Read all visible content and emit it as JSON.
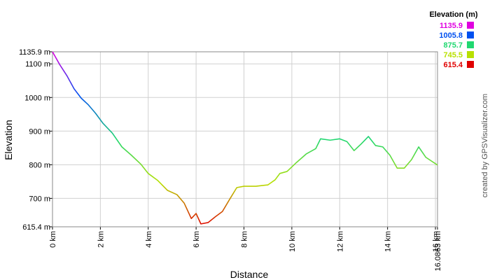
{
  "chart_data": {
    "type": "line",
    "x_label": "Distance",
    "y_label": "Elevation",
    "credit": "created by GPSVisualizer.com",
    "xlim": [
      0,
      16.0863
    ],
    "ylim": [
      615.4,
      1135.9
    ],
    "grid": true,
    "xticks": [
      {
        "value": 0,
        "label": "0 km"
      },
      {
        "value": 2,
        "label": "2 km"
      },
      {
        "value": 4,
        "label": "4 km"
      },
      {
        "value": 6,
        "label": "6 km"
      },
      {
        "value": 8,
        "label": "8 km"
      },
      {
        "value": 10,
        "label": "10 km"
      },
      {
        "value": 12,
        "label": "12 km"
      },
      {
        "value": 14,
        "label": "14 km"
      },
      {
        "value": 16,
        "label": "16 km"
      },
      {
        "value": 16.0863,
        "label": "16.0863 km"
      }
    ],
    "yticks": [
      {
        "value": 615.4,
        "label": "615.4 m"
      },
      {
        "value": 700,
        "label": "700 m"
      },
      {
        "value": 800,
        "label": "800 m"
      },
      {
        "value": 900,
        "label": "900 m"
      },
      {
        "value": 1000,
        "label": "1000 m"
      },
      {
        "value": 1100,
        "label": "1100 m"
      },
      {
        "value": 1135.9,
        "label": "1135.9 m"
      }
    ],
    "color_scale": {
      "title": "Elevation (m)",
      "values": [
        1135.9,
        1005.8,
        875.7,
        745.5,
        615.4
      ],
      "colors": [
        "#e000e0",
        "#0050f0",
        "#20d870",
        "#b8e000",
        "#e00000"
      ]
    },
    "x": [
      0,
      0.3,
      0.6,
      0.9,
      1.2,
      1.5,
      1.8,
      2.1,
      2.5,
      2.9,
      3.3,
      3.7,
      4.0,
      4.4,
      4.8,
      5.2,
      5.5,
      5.8,
      6.0,
      6.2,
      6.5,
      6.8,
      7.1,
      7.4,
      7.7,
      8.0,
      8.5,
      9.0,
      9.3,
      9.5,
      9.8,
      10.2,
      10.6,
      11.0,
      11.2,
      11.6,
      12.0,
      12.3,
      12.6,
      12.9,
      13.2,
      13.5,
      13.8,
      14.1,
      14.4,
      14.7,
      15.0,
      15.3,
      15.6,
      16.0863
    ],
    "values": [
      1135.9,
      1098,
      1065,
      1026,
      998,
      978,
      953,
      924,
      894,
      853,
      828,
      801,
      774,
      753,
      724,
      711,
      686,
      640,
      655,
      624,
      628,
      645,
      661,
      697,
      732,
      736,
      736,
      740,
      755,
      774,
      780,
      807,
      832,
      848,
      877,
      873,
      877,
      869,
      842,
      862,
      884,
      857,
      853,
      828,
      790,
      790,
      815,
      853,
      822,
      799
    ]
  }
}
